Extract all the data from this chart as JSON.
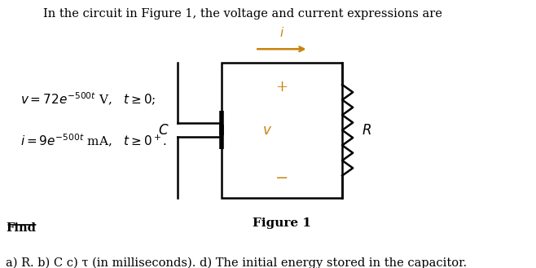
{
  "title_text": "In the circuit in Figure 1, the voltage and current expressions are",
  "bg_color": "#ffffff",
  "gold_color": "#C8820A",
  "black_color": "#000000",
  "figure_label": "Figure 1",
  "find_text": "Find",
  "find_sub": "a) R. b) C c) τ (in milliseconds). d) The initial energy stored in the capacitor."
}
